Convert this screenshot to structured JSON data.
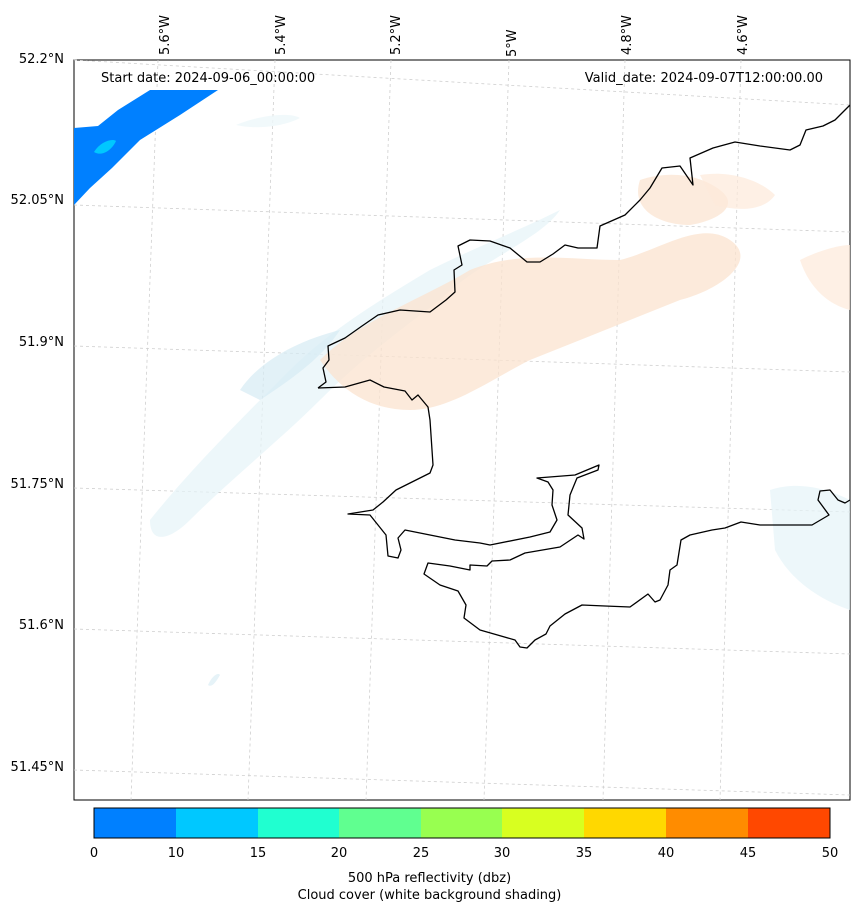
{
  "header": {
    "start_date": "Start date: 2024-09-06_00:00:00",
    "valid_date": "Valid_date: 2024-09-07T12:00:00.00"
  },
  "axes": {
    "longitude_labels": [
      "5.6°W",
      "5.4°W",
      "5.2°W",
      "5°W",
      "4.8°W",
      "4.6°W"
    ],
    "latitude_labels": [
      "52.2°N",
      "52.05°N",
      "51.9°N",
      "51.75°N",
      "51.6°N",
      "51.45°N"
    ]
  },
  "colorbar": {
    "ticks": [
      "0",
      "10",
      "15",
      "20",
      "25",
      "30",
      "35",
      "40",
      "45",
      "50"
    ],
    "colors": [
      "#0080ff",
      "#00c8ff",
      "#20ffd0",
      "#60ff90",
      "#98ff50",
      "#d8ff20",
      "#ffd800",
      "#ff8c00",
      "#ff4800"
    ],
    "caption_line1": "500 hPa reflectivity (dbz)",
    "caption_line2": "Cloud cover (white background shading)"
  },
  "colors": {
    "coastline": "#000000",
    "gridline": "#cccccc",
    "cloud_shade_blue": "#e6f3f8",
    "cloud_shade_orange": "#fbe3cf"
  }
}
